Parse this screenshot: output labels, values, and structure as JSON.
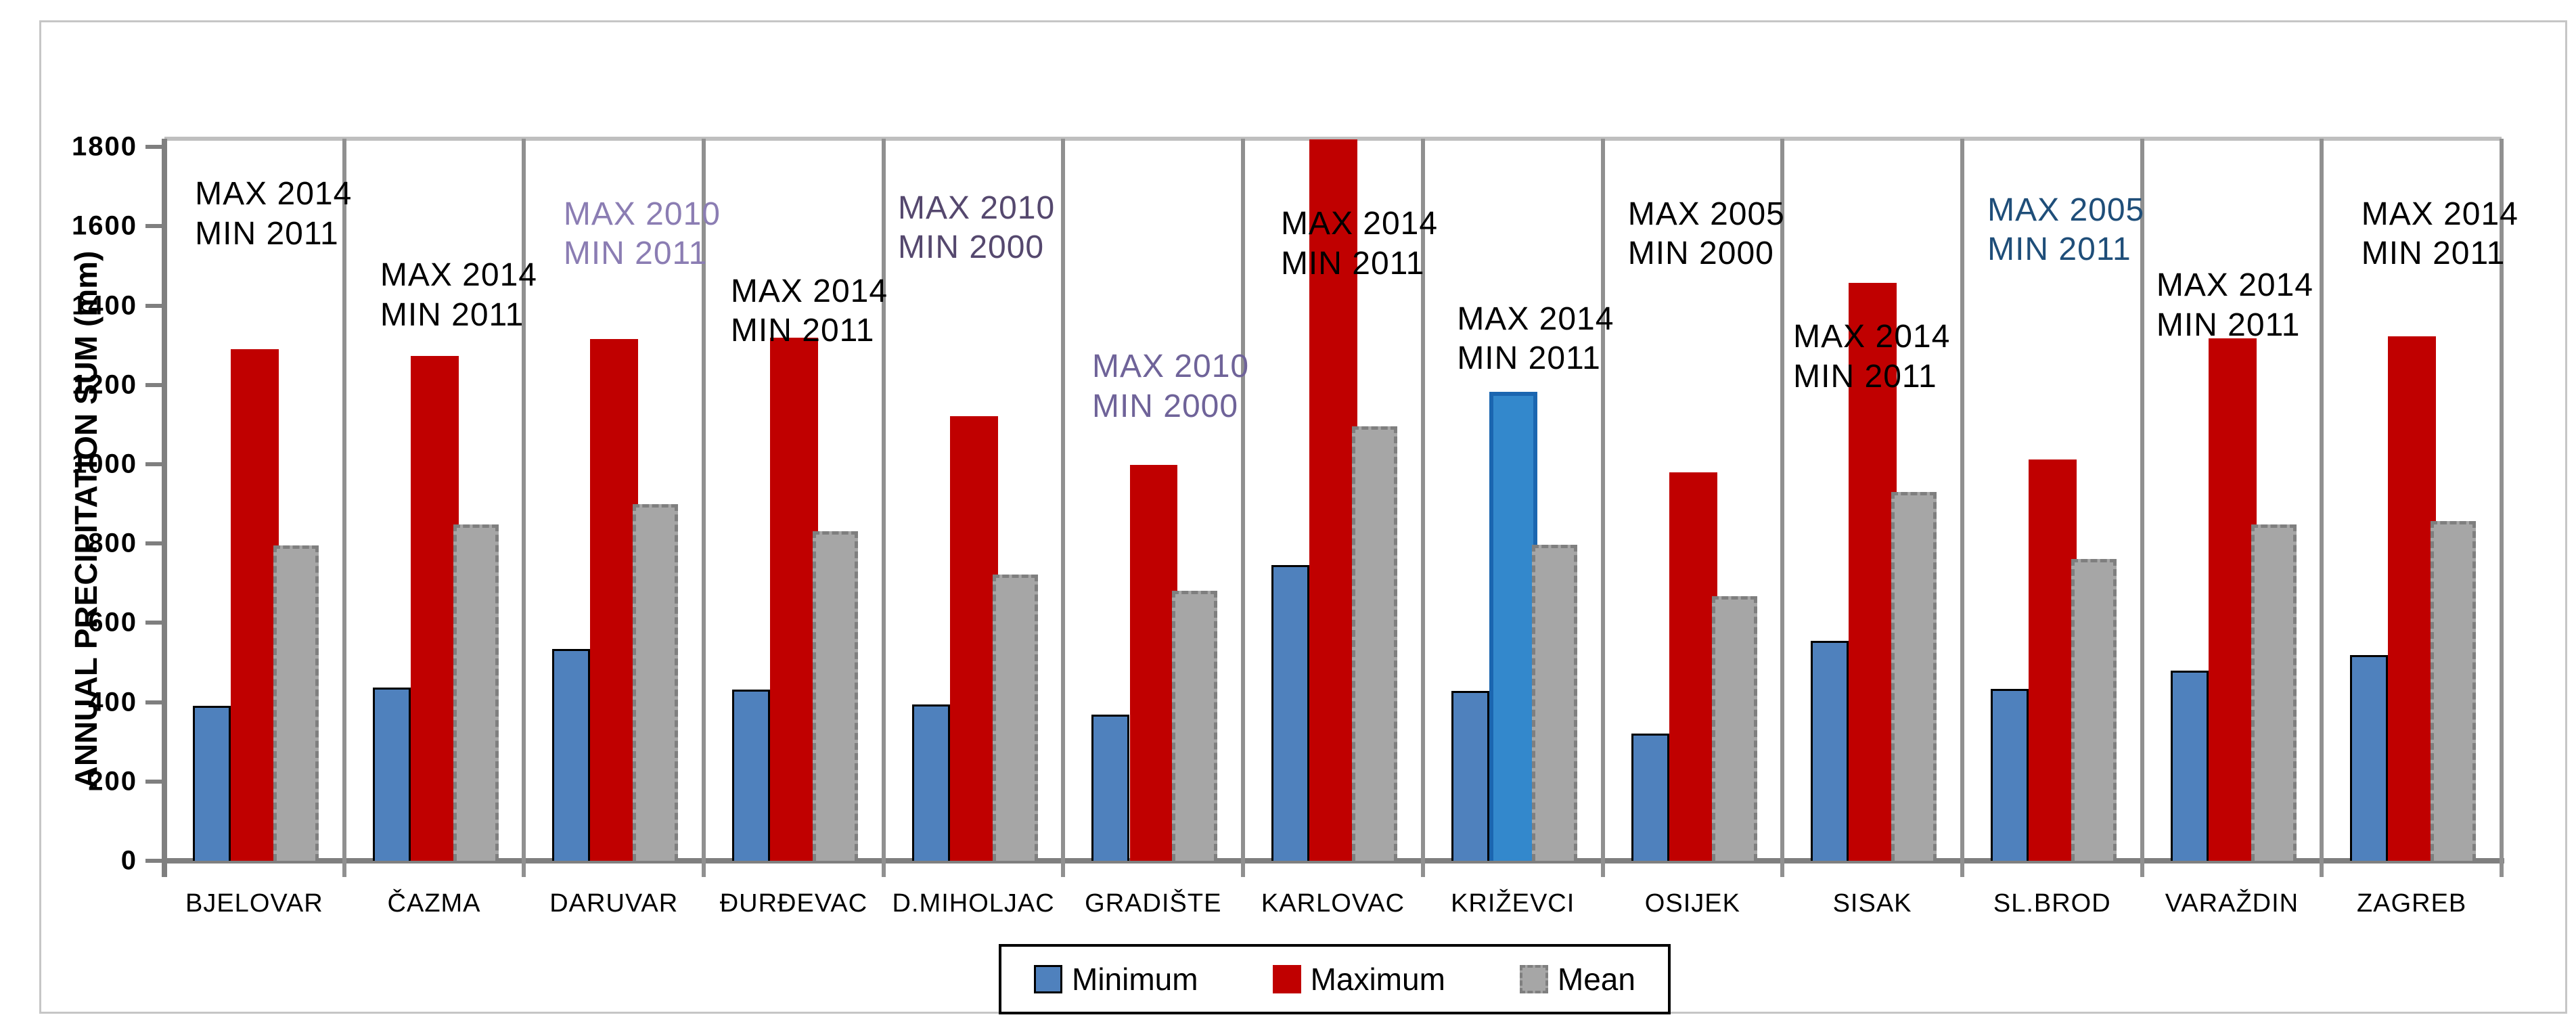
{
  "figure": {
    "y_axis_title": "ANNUAL PRECIPITATION SUM (mm)",
    "background": "#ffffff",
    "border_color": "#c6c6c6",
    "legend": {
      "items": [
        {
          "label": "Minimum",
          "color": "#4f81bd"
        },
        {
          "label": "Maximum",
          "color": "#c00000"
        },
        {
          "label": "Mean",
          "color": "#a6a6a6"
        }
      ]
    }
  },
  "chart_data": {
    "type": "bar",
    "title": "",
    "xlabel": "",
    "ylabel": "ANNUAL PRECIPITATION SUM (mm)",
    "ylim": [
      0,
      1800
    ],
    "yticks": [
      0,
      200,
      400,
      600,
      800,
      1000,
      1200,
      1400,
      1600,
      1800
    ],
    "grid": false,
    "legend_position": "bottom-center",
    "categories": [
      "BJELOVAR",
      "ČAZMA",
      "DARUVAR",
      "ĐURĐEVAC",
      "D.MIHOLJAC",
      "GRADIŠTE",
      "KARLOVAC",
      "KRIŽEVCI",
      "OSIJEK",
      "SISAK",
      "SL.BROD",
      "VARAŽDIN",
      "ZAGREB"
    ],
    "series": [
      {
        "name": "Minimum",
        "color": "#4f81bd",
        "values": [
          390,
          437,
          534,
          432,
          394,
          369,
          746,
          428,
          320,
          555,
          433,
          480,
          518
        ]
      },
      {
        "name": "Maximum",
        "color": "#c00000",
        "values": [
          1290,
          1273,
          1315,
          1320,
          1121,
          998,
          1820,
          1183,
          980,
          1458,
          1012,
          1318,
          1322
        ]
      },
      {
        "name": "Mean",
        "color": "#a6a6a6",
        "values": [
          795,
          848,
          900,
          831,
          722,
          681,
          1095,
          797,
          667,
          930,
          762,
          849,
          857
        ]
      }
    ],
    "series_note": "KARLOVAC Maximum bar is clipped at the top plot border (~1820 mm shown)",
    "highlight": {
      "category": "KRIŽEVCI",
      "series": "Maximum",
      "fill": "#3388cc",
      "border": "#1b66b0"
    },
    "annotations": [
      {
        "category": "BJELOVAR",
        "lines": [
          "MAX 2014",
          "MIN 2011"
        ],
        "color": "#000000",
        "y_value": 1730,
        "x_frac": 0.17
      },
      {
        "category": "ČAZMA",
        "lines": [
          "MAX 2014",
          "MIN 2011"
        ],
        "color": "#000000",
        "y_value": 1525,
        "x_frac": 0.2
      },
      {
        "category": "DARUVAR",
        "lines": [
          "MAX 2010",
          "MIN 2011"
        ],
        "color": "#8b7db3",
        "y_value": 1680,
        "x_frac": 0.22
      },
      {
        "category": "ĐURĐEVAC",
        "lines": [
          "MAX 2014",
          "MIN 2011"
        ],
        "color": "#000000",
        "y_value": 1485,
        "x_frac": 0.15
      },
      {
        "category": "D.MIHOLJAC",
        "lines": [
          "MAX 2010",
          "MIN 2000"
        ],
        "color": "#55486e",
        "y_value": 1695,
        "x_frac": 0.08
      },
      {
        "category": "GRADIŠTE",
        "lines": [
          "MAX 2010",
          "MIN 2000"
        ],
        "color": "#6f6399",
        "y_value": 1295,
        "x_frac": 0.16
      },
      {
        "category": "KARLOVAC",
        "lines": [
          "MAX 2014",
          "MIN 2011"
        ],
        "color": "#000000",
        "y_value": 1655,
        "x_frac": 0.21
      },
      {
        "category": "KRIŽEVCI",
        "lines": [
          "MAX 2014",
          "MIN 2011"
        ],
        "color": "#000000",
        "y_value": 1415,
        "x_frac": 0.19
      },
      {
        "category": "OSIJEK",
        "lines": [
          "MAX 2005",
          "MIN 2000"
        ],
        "color": "#000000",
        "y_value": 1680,
        "x_frac": 0.14
      },
      {
        "category": "SISAK",
        "lines": [
          "MAX 2014",
          "MIN 2011"
        ],
        "color": "#000000",
        "y_value": 1370,
        "x_frac": 0.06
      },
      {
        "category": "SL.BROD",
        "lines": [
          "MAX 2005",
          "MIN 2011"
        ],
        "color": "#1f4e79",
        "y_value": 1690,
        "x_frac": 0.14
      },
      {
        "category": "VARAŽDIN",
        "lines": [
          "MAX 2014",
          "MIN 2011"
        ],
        "color": "#000000",
        "y_value": 1500,
        "x_frac": 0.08
      },
      {
        "category": "ZAGREB",
        "lines": [
          "MAX 2014",
          "MIN 2011"
        ],
        "color": "#000000",
        "y_value": 1680,
        "x_frac": 0.22
      }
    ]
  }
}
